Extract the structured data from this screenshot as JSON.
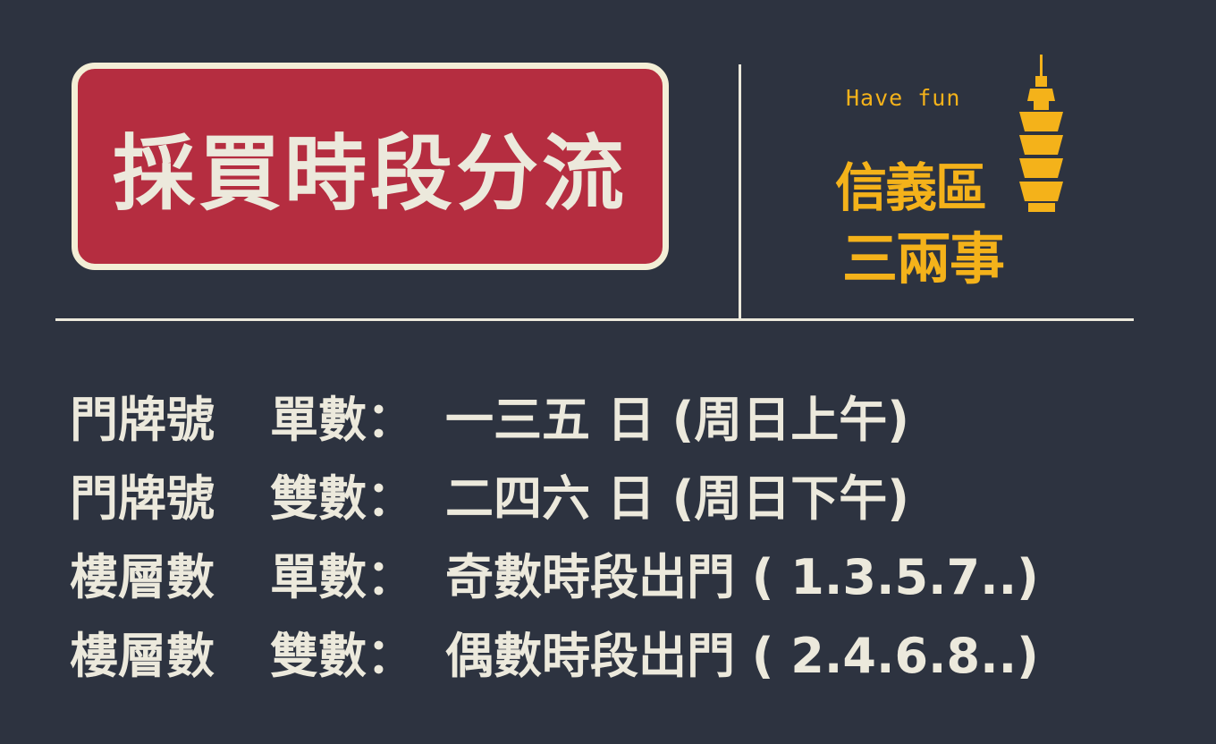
{
  "title": "採買時段分流",
  "logo": {
    "tagline": "Have fun",
    "line1": "信義區",
    "line2": "三兩事"
  },
  "rules": [
    {
      "type": "門牌號",
      "parity": "單數：",
      "days": "一三五 日 (周日上午)"
    },
    {
      "type": "門牌號",
      "parity": "雙數：",
      "days": "二四六 日 (周日下午)"
    },
    {
      "type": "樓層數",
      "parity": "單數：",
      "days": "奇數時段出門 ( 1.3.5.7..)"
    },
    {
      "type": "樓層數",
      "parity": "雙數：",
      "days": "偶數時段出門 ( 2.4.6.8..)"
    }
  ],
  "colors": {
    "background": "#2d3340",
    "title_box": "#b52d40",
    "title_border": "#f3eed6",
    "text": "#ece9dc",
    "logo": "#f4b21a"
  }
}
